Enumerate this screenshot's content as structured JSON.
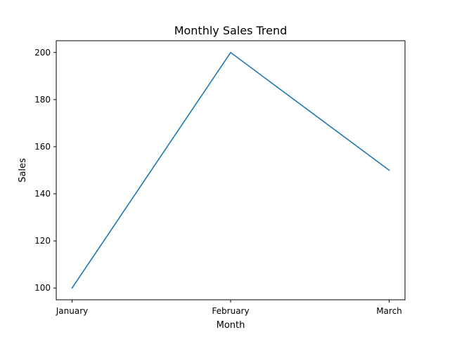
{
  "chart_data": {
    "type": "line",
    "title": "Monthly Sales Trend",
    "xlabel": "Month",
    "ylabel": "Sales",
    "categories": [
      "January",
      "February",
      "March"
    ],
    "series": [
      {
        "values": [
          100,
          200,
          150
        ],
        "color": "#1f77b4"
      }
    ],
    "ylim": [
      95,
      205
    ],
    "yticks": [
      100,
      120,
      140,
      160,
      180,
      200
    ],
    "grid": false,
    "legend": "none"
  }
}
